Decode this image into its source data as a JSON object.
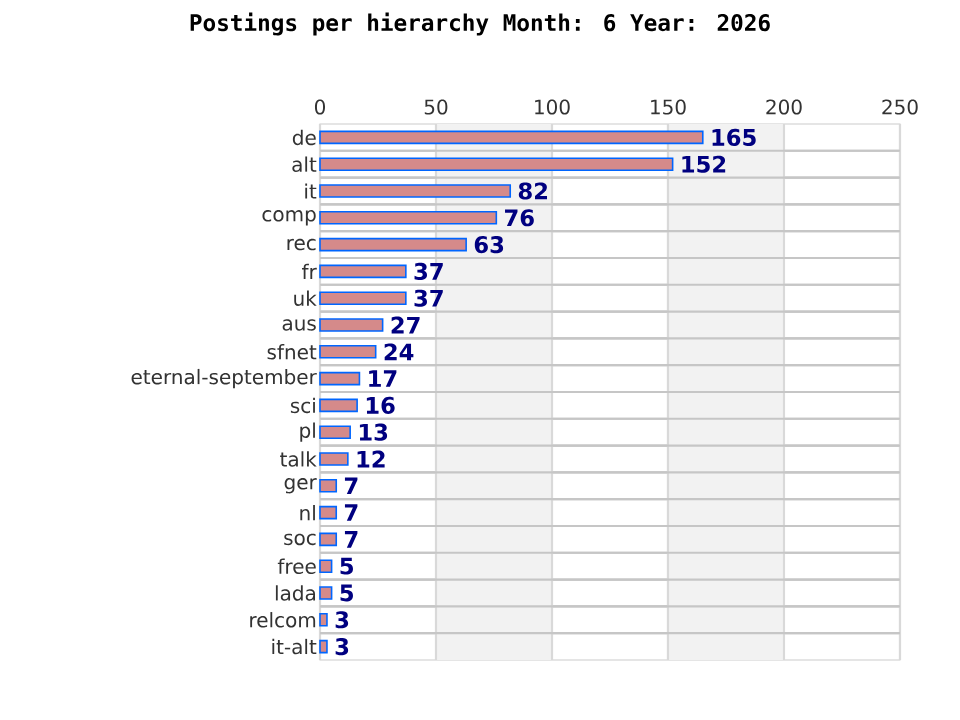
{
  "chart_data": {
    "type": "bar",
    "orientation": "horizontal",
    "title": "Postings per hierarchy Month: 6 Year: 2026",
    "categories": [
      "de",
      "alt",
      "it",
      "comp",
      "rec",
      "fr",
      "uk",
      "aus",
      "sfnet",
      "eternal-september",
      "sci",
      "pl",
      "talk",
      "ger",
      "nl",
      "soc",
      "free",
      "lada",
      "relcom",
      "it-alt"
    ],
    "values": [
      165,
      152,
      82,
      76,
      63,
      37,
      37,
      27,
      24,
      17,
      16,
      13,
      12,
      7,
      7,
      7,
      5,
      5,
      3,
      3
    ],
    "color": "#d58a8a",
    "xlim": [
      0,
      250
    ],
    "xticks": [
      0,
      50,
      100,
      150,
      200,
      250
    ],
    "bands": [
      {
        "axis": "x",
        "from": 50,
        "to": 100,
        "color": "#f2f2f2"
      },
      {
        "axis": "x",
        "from": 150,
        "to": 200,
        "color": "#f2f2f2"
      }
    ],
    "grid": true,
    "data_labels": true
  }
}
